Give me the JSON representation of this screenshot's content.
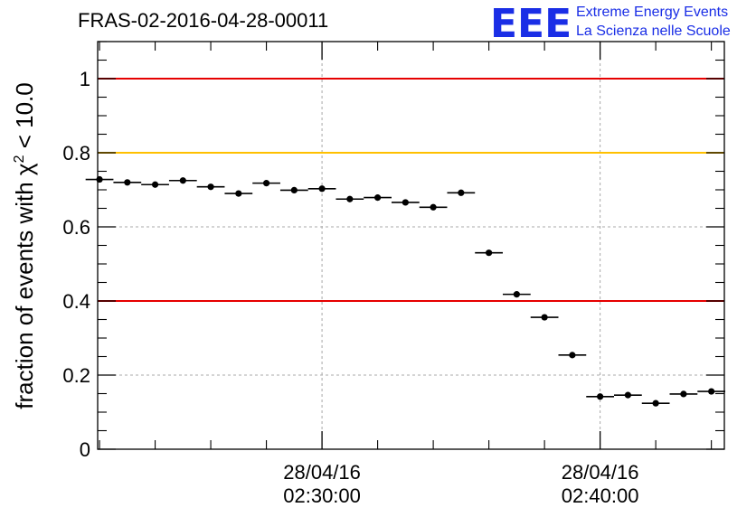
{
  "chart_data": {
    "type": "scatter",
    "title": "FRAS-02-2016-04-28-00011",
    "ylabel": {
      "prefix": "fraction of events with ",
      "symbol": "χ",
      "sup": "2",
      "suffix": " < 10.0"
    },
    "xlabel": "",
    "ylim": [
      0,
      1.1
    ],
    "yticks": [
      0,
      0.2,
      0.4,
      0.6,
      0.8,
      1
    ],
    "ytick_labels": [
      "0",
      "0.2",
      "0.4",
      "0.6",
      "0.8",
      "1"
    ],
    "xlim": [
      "02:21:56",
      "02:44:28"
    ],
    "xtick_labels": [
      {
        "x": "02:30:00",
        "date": "28/04/16",
        "time": "02:30:00"
      },
      {
        "x": "02:40:00",
        "date": "28/04/16",
        "time": "02:40:00"
      }
    ],
    "bin_width_seconds": 60,
    "grid": true,
    "reference_lines": [
      {
        "y": 1.0,
        "color": "#e60000"
      },
      {
        "y": 0.8,
        "color": "#ffc000"
      },
      {
        "y": 0.4,
        "color": "#e60000"
      }
    ],
    "series": [
      {
        "x": [
          "02:22:00",
          "02:23:00",
          "02:24:00",
          "02:25:00",
          "02:26:00",
          "02:27:00",
          "02:28:00",
          "02:29:00",
          "02:30:00",
          "02:31:00",
          "02:32:00",
          "02:33:00",
          "02:34:00",
          "02:35:00",
          "02:36:00",
          "02:37:00",
          "02:38:00",
          "02:39:00",
          "02:40:00",
          "02:41:00",
          "02:42:00",
          "02:43:00",
          "02:44:00"
        ],
        "y": [
          0.728,
          0.72,
          0.714,
          0.725,
          0.708,
          0.69,
          0.718,
          0.699,
          0.703,
          0.675,
          0.679,
          0.666,
          0.653,
          0.692,
          0.53,
          0.418,
          0.356,
          0.254,
          0.142,
          0.146,
          0.124,
          0.149,
          0.156
        ],
        "color": "#000000"
      }
    ]
  },
  "logo": {
    "mark": "EEE",
    "line1": "Extreme Energy Events",
    "line2": "La Scienza nelle Scuole",
    "color": "#1a2ee6"
  }
}
